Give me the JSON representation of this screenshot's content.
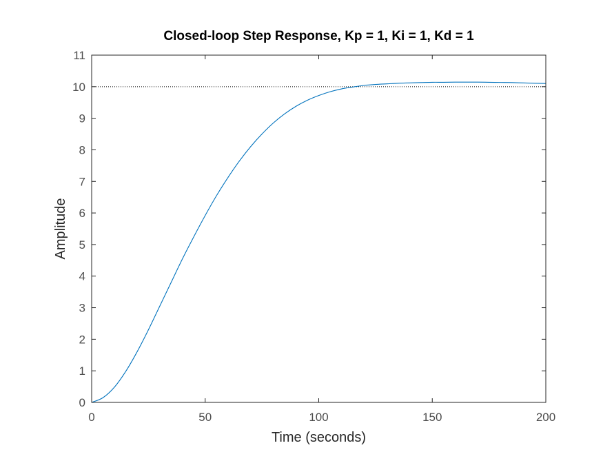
{
  "chart_data": {
    "type": "line",
    "title": "Closed-loop Step Response, Kp = 1, Ki = 1, Kd = 1",
    "xlabel": "Time (seconds)",
    "ylabel": "Amplitude",
    "xlim": [
      0,
      200
    ],
    "ylim": [
      0,
      11
    ],
    "xticks": [
      0,
      50,
      100,
      150,
      200
    ],
    "xtick_labels": [
      "0",
      "50",
      "100",
      "150",
      "200"
    ],
    "yticks": [
      0,
      1,
      2,
      3,
      4,
      5,
      6,
      7,
      8,
      9,
      10,
      11
    ],
    "ytick_labels": [
      "0",
      "1",
      "2",
      "3",
      "4",
      "5",
      "6",
      "7",
      "8",
      "9",
      "10",
      "11"
    ],
    "grid": false,
    "legend": "none",
    "reference_line": {
      "y": 10,
      "style": "dotted",
      "color": "#000000"
    },
    "series": [
      {
        "color": "#0072bd",
        "x": [
          0,
          5,
          10,
          15,
          20,
          25,
          30,
          35,
          40,
          45,
          50,
          55,
          60,
          65,
          70,
          75,
          80,
          85,
          90,
          95,
          100,
          105,
          110,
          115,
          120,
          125,
          130,
          135,
          140,
          145,
          150,
          155,
          160,
          165,
          170,
          175,
          180,
          185,
          190,
          195,
          200
        ],
        "y": [
          0,
          0.15,
          0.48,
          0.98,
          1.6,
          2.3,
          3.05,
          3.8,
          4.55,
          5.25,
          5.92,
          6.55,
          7.12,
          7.64,
          8.1,
          8.5,
          8.85,
          9.14,
          9.38,
          9.57,
          9.72,
          9.84,
          9.93,
          9.99,
          10.04,
          10.07,
          10.09,
          10.11,
          10.12,
          10.13,
          10.14,
          10.14,
          10.145,
          10.145,
          10.145,
          10.14,
          10.135,
          10.13,
          10.12,
          10.11,
          10.1
        ]
      }
    ]
  }
}
